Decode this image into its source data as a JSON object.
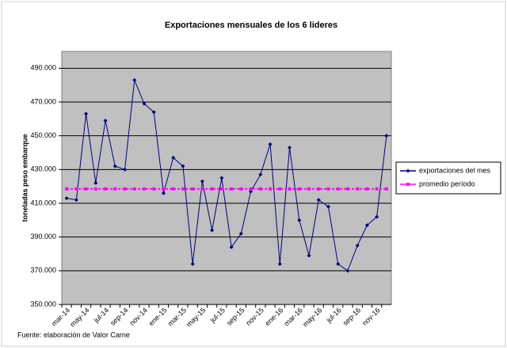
{
  "chart_data": {
    "type": "line",
    "title": "Exportaciones mensuales de los 6 lideres",
    "y_label": "toneladas peso embarque",
    "source": "Fuente: elaboración de Valor Carne",
    "categories": [
      "mar-14",
      null,
      "may-14",
      null,
      "jul-14",
      null,
      "sep-14",
      null,
      "nov-14",
      null,
      "ene-15",
      null,
      "mar-15",
      null,
      "may-15",
      null,
      "jul-15",
      null,
      "sep-15",
      null,
      "nov-15",
      null,
      "ene-16",
      null,
      "mar-16",
      null,
      "may-16",
      null,
      "jul-16",
      null,
      "sep-16",
      null,
      "nov-16",
      null
    ],
    "series": [
      {
        "name": "exportaciones del mes",
        "color": "#000080",
        "marker": "diamond",
        "values": [
          413000,
          412000,
          463000,
          422000,
          459000,
          432000,
          430000,
          483000,
          469000,
          464000,
          416000,
          437000,
          432000,
          374000,
          423000,
          394000,
          425000,
          384000,
          392000,
          417000,
          427000,
          445000,
          374000,
          443000,
          400000,
          379000,
          412000,
          408000,
          374000,
          370000,
          385000,
          397000,
          402000,
          450000
        ]
      },
      {
        "name": "promedio período",
        "color": "#ff00ff",
        "marker": "square",
        "values": [
          418500,
          418500,
          418500,
          418500,
          418500,
          418500,
          418500,
          418500,
          418500,
          418500,
          418500,
          418500,
          418500,
          418500,
          418500,
          418500,
          418500,
          418500,
          418500,
          418500,
          418500,
          418500,
          418500,
          418500,
          418500,
          418500,
          418500,
          418500,
          418500,
          418500,
          418500,
          418500,
          418500,
          418500
        ]
      }
    ],
    "ylim": [
      350000,
      500000
    ],
    "yticks": [
      {
        "value": 350000,
        "label": "350.000"
      },
      {
        "value": 370000,
        "label": "370.000"
      },
      {
        "value": 390000,
        "label": "390.000"
      },
      {
        "value": 410000,
        "label": "410.000"
      },
      {
        "value": 430000,
        "label": "430.000"
      },
      {
        "value": 450000,
        "label": "450.000"
      },
      {
        "value": 470000,
        "label": "470.000"
      },
      {
        "value": 490000,
        "label": "490.000"
      }
    ],
    "grid": true,
    "legend": "right"
  }
}
